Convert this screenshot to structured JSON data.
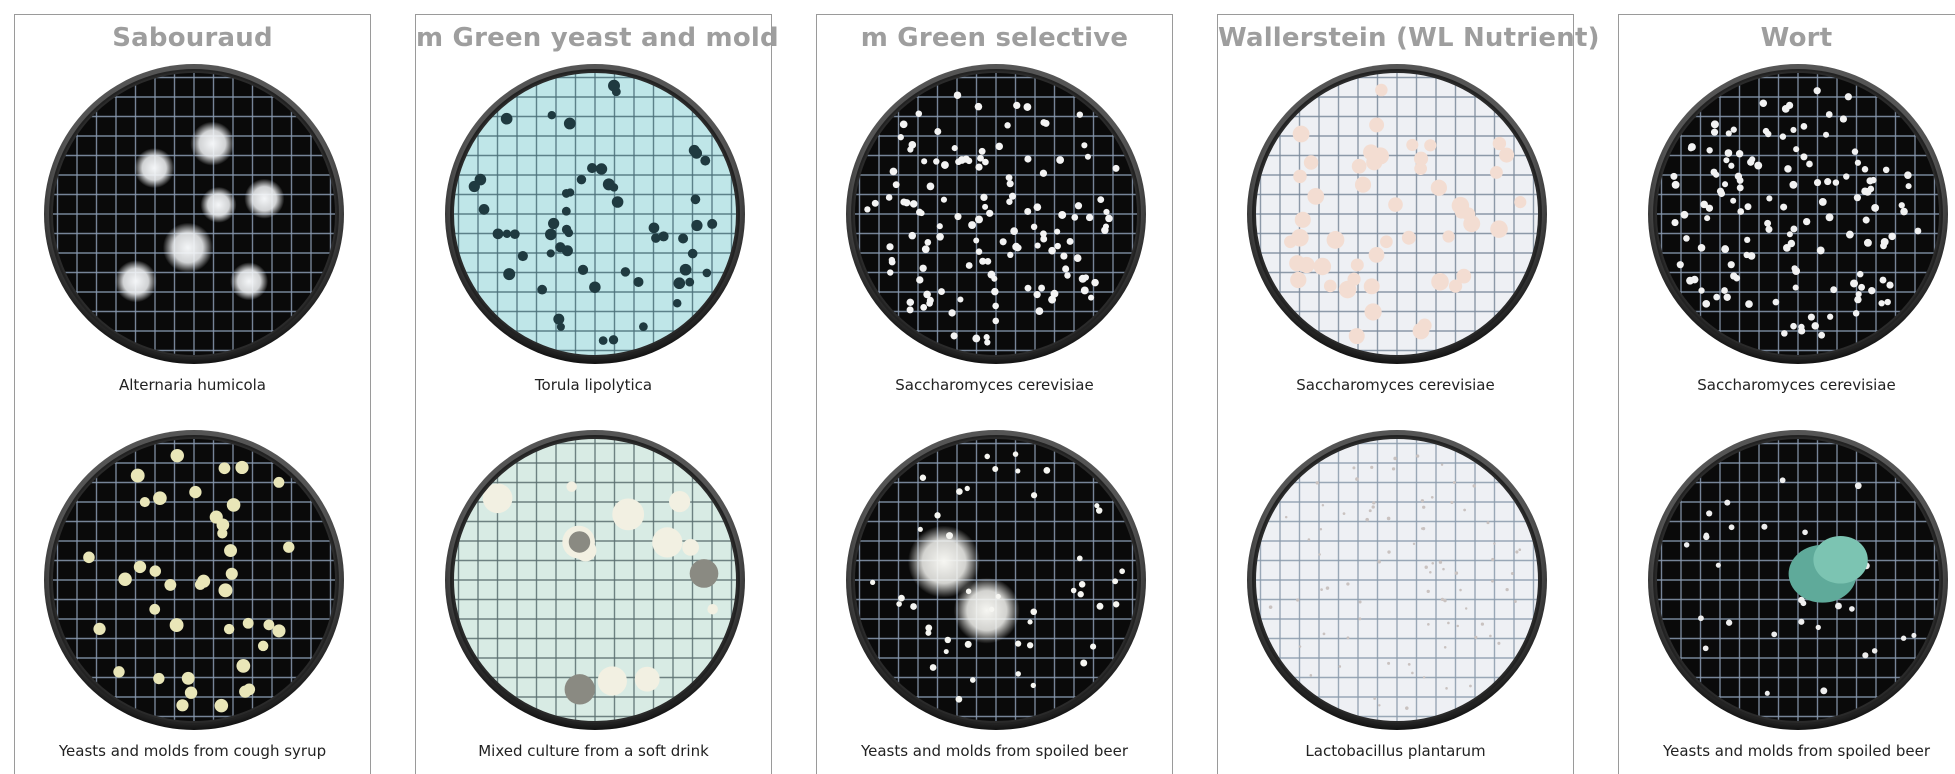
{
  "panels": [
    {
      "title": "Sabouraud",
      "top_caption": "Alternaria humicola",
      "bottom_caption": "Yeasts and molds from cough syrup",
      "top_dish": {
        "background": "#0a0a0a",
        "grid": "#8a9ab0",
        "colony": "#f4f6f8",
        "colony_type": "fuzzy-large"
      },
      "bottom_dish": {
        "background": "#0a0a0a",
        "grid": "#8a9ab0",
        "colony": "#e9e6b8",
        "colony_type": "round-medium"
      }
    },
    {
      "title": "m Green yeast and mold",
      "top_caption": "Torula lipolytica",
      "bottom_caption": "Mixed culture from a soft drink",
      "top_dish": {
        "background": "#bfe6e8",
        "grid": "#4a6e78",
        "colony": "#1f3a40",
        "colony_type": "dark-small"
      },
      "bottom_dish": {
        "background": "#d8ebe4",
        "grid": "#5a6e70",
        "colony": "#f2f0e2",
        "colony_type": "pale-mixed"
      }
    },
    {
      "title": "m Green selective",
      "top_caption": "Saccharomyces cerevisiae",
      "bottom_caption": "Yeasts and molds from spoiled beer",
      "top_dish": {
        "background": "#0a0a0a",
        "grid": "#8a9ab0",
        "colony": "#f4f4f4",
        "colony_type": "tiny-dense"
      },
      "bottom_dish": {
        "background": "#0a0a0a",
        "grid": "#8a9ab0",
        "colony": "#f6f6f2",
        "colony_type": "mold-fuzzy"
      }
    },
    {
      "title": "Wallerstein (WL Nutrient)",
      "top_caption": "Saccharomyces cerevisiae",
      "bottom_caption": "Lactobacillus plantarum",
      "top_dish": {
        "background": "#eef0f4",
        "grid": "#7a8a9a",
        "colony": "#f3ddd2",
        "colony_type": "pale-round"
      },
      "bottom_dish": {
        "background": "#eef0f4",
        "grid": "#8a9aaa",
        "colony": "#c9c2c0",
        "colony_type": "pinpoint"
      }
    },
    {
      "title": "Wort",
      "top_caption": "Saccharomyces cerevisiae",
      "bottom_caption": "Yeasts and molds from spoiled beer",
      "top_dish": {
        "background": "#0a0a0a",
        "grid": "#8a9ab0",
        "colony": "#f2f2f2",
        "colony_type": "tiny-dense"
      },
      "bottom_dish": {
        "background": "#0a0a0a",
        "grid": "#8a9ab0",
        "colony": "#eeeeee",
        "colony_type": "green-mold"
      }
    }
  ]
}
